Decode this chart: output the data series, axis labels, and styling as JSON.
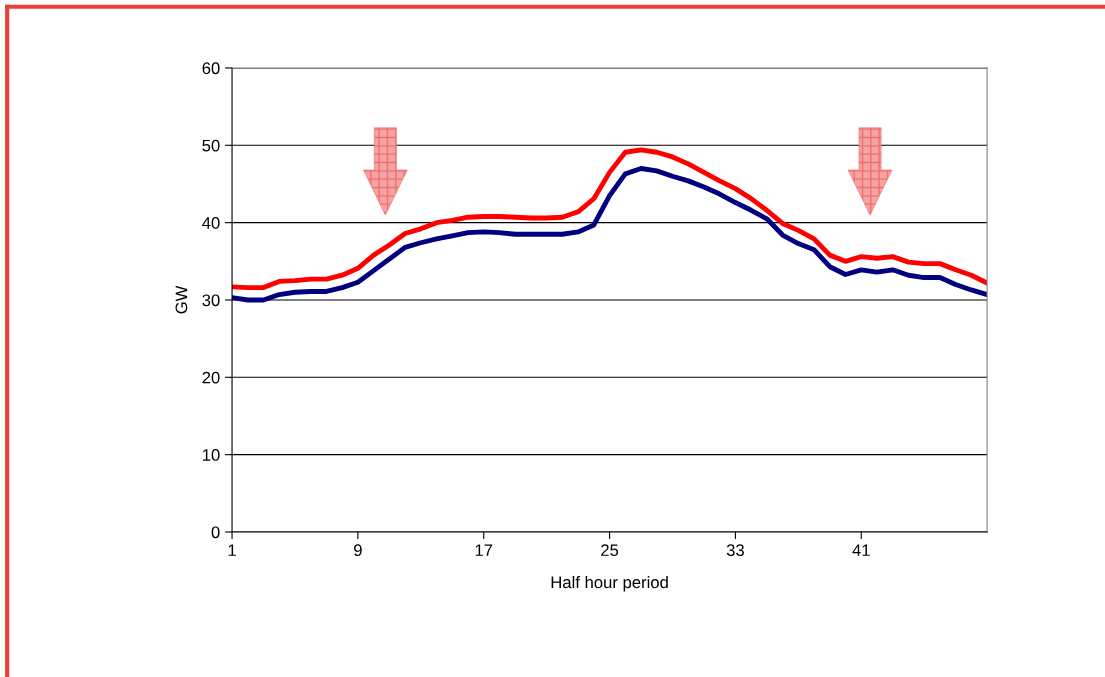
{
  "chart_data": {
    "type": "line",
    "xlabel": "Half hour period",
    "ylabel": "GW",
    "x": [
      1,
      2,
      3,
      4,
      5,
      6,
      7,
      8,
      9,
      10,
      11,
      12,
      13,
      14,
      15,
      16,
      17,
      18,
      19,
      20,
      21,
      22,
      23,
      24,
      25,
      26,
      27,
      28,
      29,
      30,
      31,
      32,
      33,
      34,
      35,
      36,
      37,
      38,
      39,
      40,
      41,
      42,
      43,
      44,
      45,
      46,
      47,
      48,
      49
    ],
    "series": [
      {
        "color": "#ff0000",
        "values": [
          31.7,
          31.6,
          31.6,
          32.4,
          32.5,
          32.7,
          32.7,
          33.2,
          34.1,
          35.8,
          37.1,
          38.6,
          39.2,
          40.0,
          40.3,
          40.7,
          40.8,
          40.8,
          40.7,
          40.6,
          40.6,
          40.7,
          41.4,
          43.1,
          46.5,
          49.1,
          49.4,
          49.1,
          48.5,
          47.6,
          46.5,
          45.4,
          44.4,
          43.1,
          41.6,
          39.9,
          39.0,
          37.9,
          35.8,
          35.0,
          35.6,
          35.4,
          35.6,
          34.9,
          34.7,
          34.7,
          33.9,
          33.2,
          32.2
        ]
      },
      {
        "color": "#000080",
        "values": [
          30.3,
          30.0,
          30.0,
          30.7,
          31.0,
          31.1,
          31.1,
          31.6,
          32.3,
          33.8,
          35.3,
          36.8,
          37.4,
          37.9,
          38.3,
          38.7,
          38.8,
          38.7,
          38.5,
          38.5,
          38.5,
          38.5,
          38.8,
          39.7,
          43.5,
          46.3,
          47.0,
          46.7,
          46.0,
          45.4,
          44.6,
          43.7,
          42.6,
          41.6,
          40.5,
          38.4,
          37.3,
          36.5,
          34.3,
          33.3,
          33.9,
          33.6,
          33.9,
          33.2,
          32.9,
          32.9,
          32.0,
          31.3,
          30.7
        ]
      }
    ],
    "xlim": [
      1,
      49
    ],
    "xticks": [
      1,
      9,
      17,
      25,
      33,
      41
    ],
    "ylim": [
      0,
      60
    ],
    "yticks": [
      0,
      10,
      20,
      30,
      40,
      50,
      60
    ],
    "grid": "y",
    "legend": false,
    "marker": "none",
    "line_style": "solid"
  }
}
